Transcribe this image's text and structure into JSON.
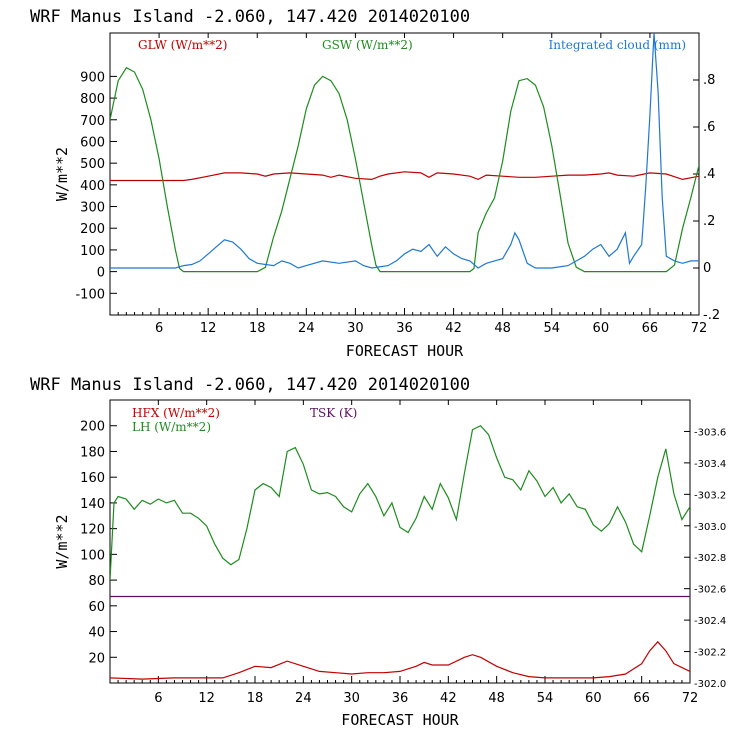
{
  "chart_data": [
    {
      "type": "line",
      "title": "WRF  Manus Island  -2.060, 147.420  2014020100",
      "xlabel": "FORECAST HOUR",
      "ylabel": "W/m**2",
      "xlim": [
        0,
        72
      ],
      "ylim": [
        -200,
        1100
      ],
      "y2lim": [
        -0.2,
        1.0
      ],
      "xticks": [
        "6",
        "12",
        "18",
        "24",
        "30",
        "36",
        "42",
        "48",
        "54",
        "60",
        "66",
        "72"
      ],
      "yticks": [
        "-100",
        "0",
        "100",
        "200",
        "300",
        "400",
        "500",
        "600",
        "700",
        "800",
        "900"
      ],
      "y2ticks": [
        "-.2",
        "0",
        ".2",
        ".4",
        ".6",
        ".8"
      ],
      "grid": false,
      "legend_position": "top",
      "series": [
        {
          "name": "GLW (W/m**2)",
          "axis": "left",
          "color": "#c00000",
          "x": [
            0,
            3,
            6,
            9,
            10,
            12,
            14,
            16,
            18,
            19,
            20,
            22,
            24,
            26,
            27,
            28,
            30,
            32,
            33,
            34,
            36,
            38,
            39,
            40,
            42,
            44,
            45,
            46,
            48,
            50,
            52,
            54,
            56,
            58,
            60,
            61,
            62,
            64,
            66,
            68,
            70,
            72
          ],
          "y": [
            420,
            420,
            420,
            420,
            425,
            440,
            455,
            455,
            450,
            440,
            450,
            455,
            450,
            445,
            435,
            445,
            430,
            425,
            440,
            450,
            460,
            455,
            435,
            455,
            450,
            440,
            425,
            445,
            440,
            435,
            435,
            440,
            445,
            445,
            450,
            455,
            445,
            440,
            455,
            450,
            425,
            440
          ]
        },
        {
          "name": "GSW (W/m**2)",
          "axis": "left",
          "color": "#1e8b1e",
          "x": [
            0,
            1,
            2,
            3,
            4,
            5,
            6,
            7,
            8,
            8.5,
            9,
            10,
            12,
            14,
            16,
            18,
            19,
            20,
            21,
            22,
            23,
            24,
            25,
            26,
            27,
            28,
            29,
            30,
            31,
            32,
            32.5,
            33,
            34,
            36,
            38,
            40,
            42,
            44,
            44.5,
            45,
            46,
            47,
            48,
            49,
            50,
            51,
            52,
            53,
            54,
            55,
            56,
            57,
            58,
            60,
            62,
            64,
            66,
            67,
            68,
            69,
            70,
            71,
            72
          ],
          "y": [
            700,
            880,
            940,
            920,
            840,
            700,
            520,
            300,
            100,
            15,
            0,
            0,
            0,
            0,
            0,
            0,
            20,
            160,
            280,
            430,
            580,
            750,
            860,
            900,
            880,
            820,
            700,
            520,
            320,
            120,
            30,
            0,
            0,
            0,
            0,
            0,
            0,
            0,
            15,
            180,
            270,
            340,
            510,
            740,
            880,
            890,
            860,
            760,
            580,
            360,
            130,
            20,
            0,
            0,
            0,
            0,
            0,
            0,
            0,
            30,
            200,
            340,
            490
          ]
        },
        {
          "name": "Integrated cloud (mm)",
          "axis": "right",
          "color": "#1f78d0",
          "x": [
            0,
            2,
            4,
            6,
            8,
            9,
            10,
            11,
            12,
            13,
            14,
            15,
            16,
            17,
            18,
            20,
            21,
            22,
            23,
            24,
            26,
            28,
            30,
            31,
            32,
            34,
            35,
            36,
            37,
            38,
            39,
            40,
            41,
            42,
            43,
            44,
            45,
            46,
            47,
            48,
            49,
            49.5,
            50,
            51,
            52,
            54,
            56,
            58,
            59,
            60,
            61,
            62,
            63,
            63.5,
            64,
            65,
            65.5,
            66,
            66.5,
            67,
            67.5,
            68,
            69,
            70,
            71,
            72
          ],
          "y": [
            0,
            0,
            0,
            0,
            0,
            0.01,
            0.015,
            0.03,
            0.06,
            0.09,
            0.12,
            0.11,
            0.08,
            0.04,
            0.02,
            0.01,
            0.03,
            0.02,
            0,
            0.01,
            0.03,
            0.02,
            0.03,
            0.01,
            0,
            0.01,
            0.03,
            0.06,
            0.08,
            0.07,
            0.1,
            0.05,
            0.09,
            0.06,
            0.04,
            0.03,
            0,
            0.02,
            0.03,
            0.04,
            0.1,
            0.15,
            0.12,
            0.02,
            0,
            0,
            0.01,
            0.05,
            0.08,
            0.1,
            0.05,
            0.08,
            0.15,
            0.02,
            0.05,
            0.1,
            0.35,
            0.65,
            1.0,
            0.75,
            0.3,
            0.05,
            0.03,
            0.02,
            0.03,
            0.03
          ]
        }
      ]
    },
    {
      "type": "line",
      "title": "WRF  Manus Island  -2.060, 147.420  2014020100",
      "xlabel": "FORECAST HOUR",
      "ylabel": "W/m**2",
      "xlim": [
        0,
        72
      ],
      "ylim": [
        0,
        220
      ],
      "y2lim": [
        302.0,
        303.8
      ],
      "xticks": [
        "6",
        "12",
        "18",
        "24",
        "30",
        "36",
        "42",
        "48",
        "54",
        "60",
        "66",
        "72"
      ],
      "yticks": [
        "20",
        "40",
        "60",
        "80",
        "100",
        "120",
        "140",
        "160",
        "180",
        "200"
      ],
      "y2ticks": [
        "302.0",
        "302.2",
        "302.4",
        "302.6",
        "302.8",
        "303.0",
        "303.2",
        "303.4",
        "303.6"
      ],
      "grid": false,
      "legend_position": "top-left",
      "series": [
        {
          "name": "HFX (W/m**2)",
          "axis": "left",
          "color": "#c00000",
          "x": [
            0,
            4,
            8,
            10,
            12,
            14,
            16,
            18,
            20,
            22,
            24,
            26,
            28,
            30,
            32,
            34,
            36,
            38,
            39,
            40,
            42,
            44,
            45,
            46,
            48,
            50,
            52,
            54,
            56,
            58,
            60,
            62,
            64,
            66,
            67,
            68,
            69,
            70,
            72
          ],
          "y": [
            4,
            3,
            4,
            4,
            4,
            4,
            8,
            13,
            12,
            17,
            13,
            9,
            8,
            7,
            8,
            8,
            9,
            13,
            16,
            14,
            14,
            20,
            22,
            20,
            13,
            8,
            5,
            4,
            4,
            4,
            4,
            5,
            7,
            15,
            25,
            32,
            25,
            15,
            9
          ]
        },
        {
          "name": "LH (W/m**2)",
          "axis": "left",
          "color": "#1e8b1e",
          "x": [
            0,
            0.5,
            1,
            2,
            3,
            4,
            5,
            6,
            7,
            8,
            9,
            10,
            11,
            12,
            13,
            14,
            15,
            16,
            17,
            18,
            19,
            20,
            21,
            22,
            23,
            24,
            25,
            26,
            27,
            28,
            29,
            30,
            31,
            32,
            33,
            34,
            35,
            36,
            37,
            38,
            39,
            40,
            41,
            42,
            43,
            44,
            45,
            46,
            47,
            48,
            49,
            50,
            51,
            52,
            53,
            54,
            55,
            56,
            57,
            58,
            59,
            60,
            61,
            62,
            63,
            64,
            65,
            66,
            67,
            68,
            69,
            70,
            71,
            72
          ],
          "y": [
            80,
            140,
            145,
            143,
            135,
            142,
            139,
            143,
            140,
            142,
            132,
            132,
            128,
            122,
            108,
            97,
            92,
            96,
            120,
            150,
            155,
            152,
            145,
            180,
            183,
            170,
            150,
            147,
            148,
            145,
            137,
            133,
            147,
            155,
            145,
            130,
            140,
            121,
            117,
            128,
            145,
            135,
            155,
            144,
            127,
            163,
            197,
            200,
            193,
            175,
            160,
            158,
            150,
            165,
            157,
            145,
            152,
            140,
            147,
            137,
            135,
            123,
            118,
            124,
            137,
            125,
            108,
            102,
            130,
            160,
            182,
            147,
            127,
            137
          ]
        },
        {
          "name": "TSK (K)",
          "axis": "right",
          "color": "#5a1060",
          "x": [
            0,
            72
          ],
          "y": [
            302.55,
            302.55
          ]
        }
      ]
    }
  ]
}
